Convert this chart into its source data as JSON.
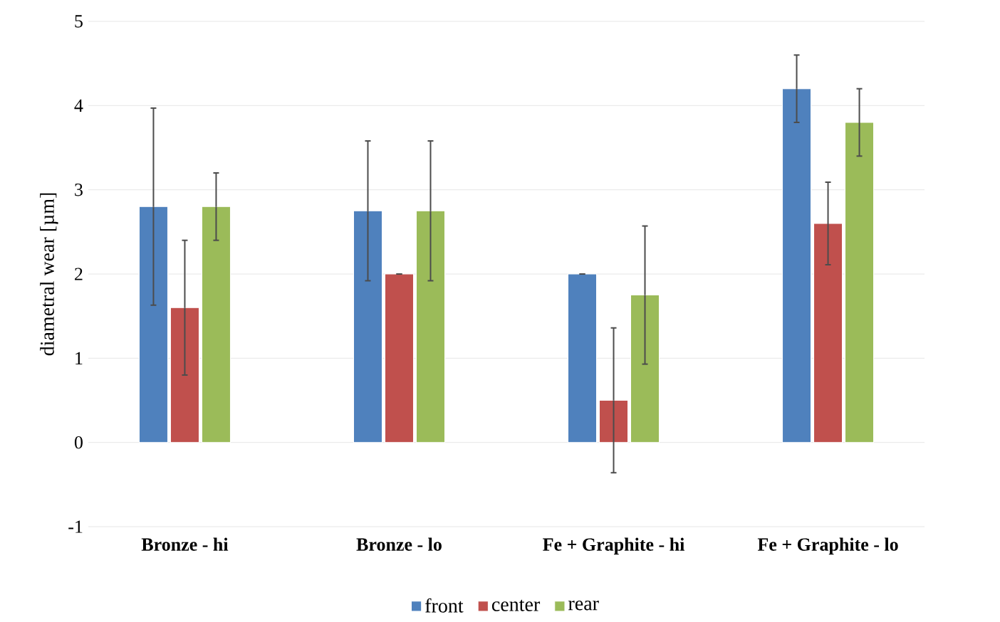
{
  "chart_data": {
    "type": "bar",
    "ylabel": "diametral wear [µm]",
    "categories": [
      "Bronze - hi",
      "Bronze - lo",
      "Fe + Graphite - hi",
      "Fe + Graphite - lo"
    ],
    "series": [
      {
        "name": "front",
        "color": "#4f81bd",
        "values": [
          2.8,
          2.75,
          2.0,
          4.2
        ],
        "errors": [
          1.17,
          0.83,
          0,
          0.4
        ]
      },
      {
        "name": "center",
        "color": "#c0504d",
        "values": [
          1.6,
          2.0,
          0.5,
          2.6
        ],
        "errors": [
          0.8,
          0,
          0.86,
          0.49
        ]
      },
      {
        "name": "rear",
        "color": "#9bbb59",
        "values": [
          2.8,
          2.75,
          1.75,
          3.8
        ],
        "errors": [
          0.4,
          0.83,
          0.82,
          0.4
        ]
      }
    ],
    "ylim": [
      -1,
      5
    ],
    "yticks": [
      -1,
      0,
      1,
      2,
      3,
      4,
      5
    ],
    "grid": "y",
    "legend": "bottom"
  }
}
